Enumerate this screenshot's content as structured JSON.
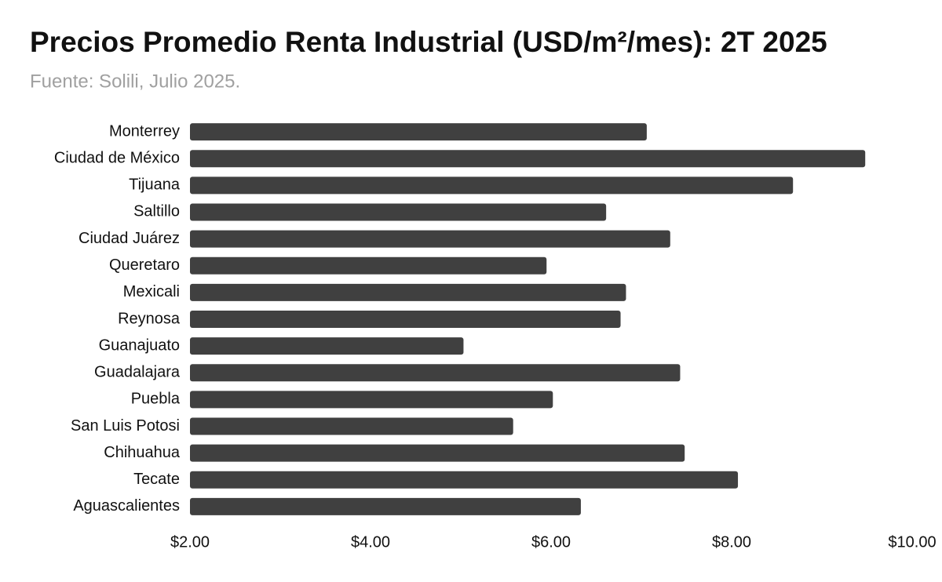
{
  "chart_data": {
    "type": "bar",
    "orientation": "horizontal",
    "title": "Precios Promedio Renta Industrial (USD/m²/mes): 2T 2025",
    "subtitle": "Fuente: Solili, Julio 2025.",
    "categories": [
      "Monterrey",
      "Ciudad de México",
      "Tijuana",
      "Saltillo",
      "Ciudad Juárez",
      "Queretaro",
      "Mexicali",
      "Reynosa",
      "Guanajuato",
      "Guadalajara",
      "Puebla",
      "San Luis Potosi",
      "Chihuahua",
      "Tecate",
      "Aguascalientes"
    ],
    "values": [
      7.06,
      9.48,
      8.68,
      6.61,
      7.32,
      5.95,
      6.83,
      6.77,
      5.03,
      7.43,
      6.02,
      5.58,
      7.48,
      8.07,
      6.33
    ],
    "color": "#404040",
    "xlim": [
      2,
      10
    ],
    "xticks": [
      {
        "value": 2,
        "label": "$2.00"
      },
      {
        "value": 4,
        "label": "$4.00"
      },
      {
        "value": 6,
        "label": "$6.00"
      },
      {
        "value": 8,
        "label": "$8.00"
      },
      {
        "value": 10,
        "label": "$10.00"
      }
    ],
    "grid": false
  }
}
